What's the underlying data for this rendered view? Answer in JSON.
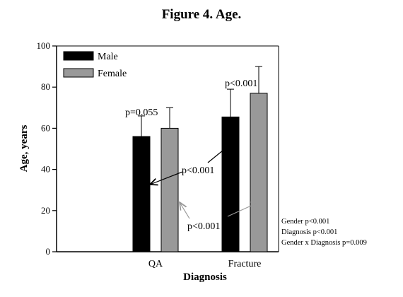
{
  "chart_data": {
    "type": "bar",
    "title": "Figure 4. Age.",
    "xlabel": "Diagnosis",
    "ylabel": "Age, years",
    "ylim": [
      0,
      100
    ],
    "yticks": [
      "0",
      "20",
      "40",
      "60",
      "80",
      "100"
    ],
    "categories": [
      "QA",
      "Fracture"
    ],
    "series": [
      {
        "name": "Male",
        "color": "#000000",
        "values": [
          56,
          65.5
        ],
        "error_upper": [
          66,
          79
        ]
      },
      {
        "name": "Female",
        "color": "#999999",
        "values": [
          60,
          77
        ],
        "error_upper": [
          70,
          90
        ]
      }
    ],
    "legend_position": "top-left",
    "grid": false,
    "annotations": {
      "qa_p": "p=0.055",
      "fracture_p": "p<0.001",
      "male_cross_p": "p<0.001",
      "female_cross_p": "p<0.001"
    },
    "stats": [
      "Gender p<0.001",
      "Diagnosis p<0.001",
      "Gender x Diagnosis p=0.009"
    ]
  }
}
